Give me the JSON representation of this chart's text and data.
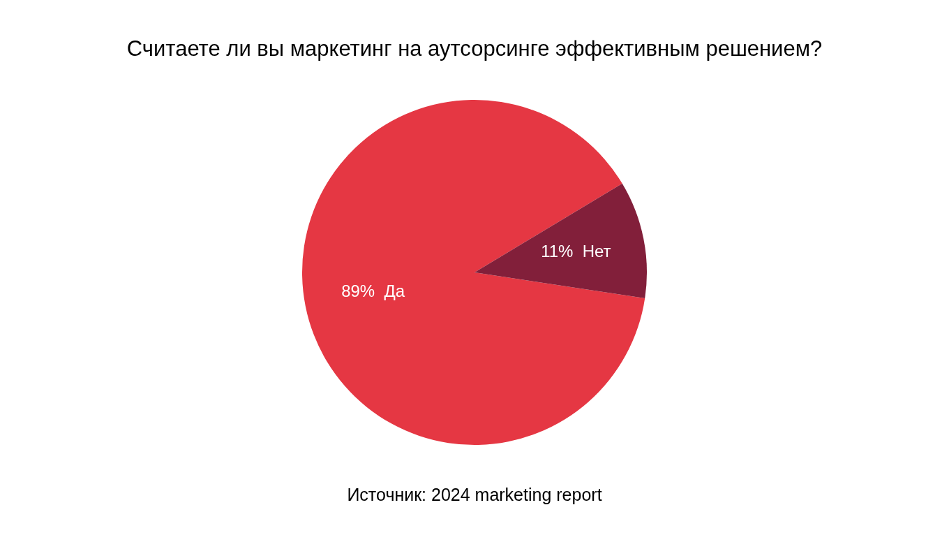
{
  "chart_data": {
    "type": "pie",
    "title": "Считаете ли вы маркетинг на аутсорсинге эффективным решением?",
    "categories": [
      "Да",
      "Нет"
    ],
    "values": [
      89,
      11
    ],
    "value_labels": [
      "89%",
      "11%"
    ],
    "colors": [
      "#e53743",
      "#821f3a"
    ],
    "annotations": [
      "Источник: 2024 marketing report"
    ]
  }
}
